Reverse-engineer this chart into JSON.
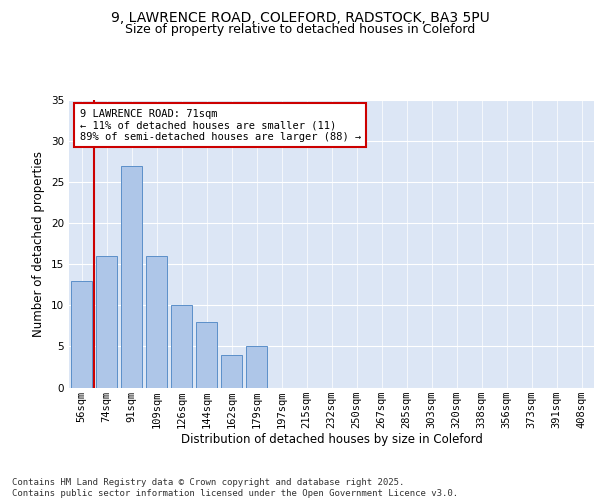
{
  "title1": "9, LAWRENCE ROAD, COLEFORD, RADSTOCK, BA3 5PU",
  "title2": "Size of property relative to detached houses in Coleford",
  "xlabel": "Distribution of detached houses by size in Coleford",
  "ylabel": "Number of detached properties",
  "bar_labels": [
    "56sqm",
    "74sqm",
    "91sqm",
    "109sqm",
    "126sqm",
    "144sqm",
    "162sqm",
    "179sqm",
    "197sqm",
    "215sqm",
    "232sqm",
    "250sqm",
    "267sqm",
    "285sqm",
    "303sqm",
    "320sqm",
    "338sqm",
    "356sqm",
    "373sqm",
    "391sqm",
    "408sqm"
  ],
  "bar_values": [
    13,
    16,
    27,
    16,
    10,
    8,
    4,
    5,
    0,
    0,
    0,
    0,
    0,
    0,
    0,
    0,
    0,
    0,
    0,
    0,
    0
  ],
  "bar_color": "#aec6e8",
  "bar_edge_color": "#5b8fc9",
  "subject_line_color": "#cc0000",
  "annotation_text": "9 LAWRENCE ROAD: 71sqm\n← 11% of detached houses are smaller (11)\n89% of semi-detached houses are larger (88) →",
  "annotation_box_color": "#ffffff",
  "annotation_box_edge": "#cc0000",
  "background_color": "#dce6f5",
  "ylim": [
    0,
    35
  ],
  "yticks": [
    0,
    5,
    10,
    15,
    20,
    25,
    30,
    35
  ],
  "footer": "Contains HM Land Registry data © Crown copyright and database right 2025.\nContains public sector information licensed under the Open Government Licence v3.0.",
  "title_fontsize": 10,
  "subtitle_fontsize": 9,
  "axis_label_fontsize": 8.5,
  "tick_fontsize": 7.5,
  "footer_fontsize": 6.5
}
